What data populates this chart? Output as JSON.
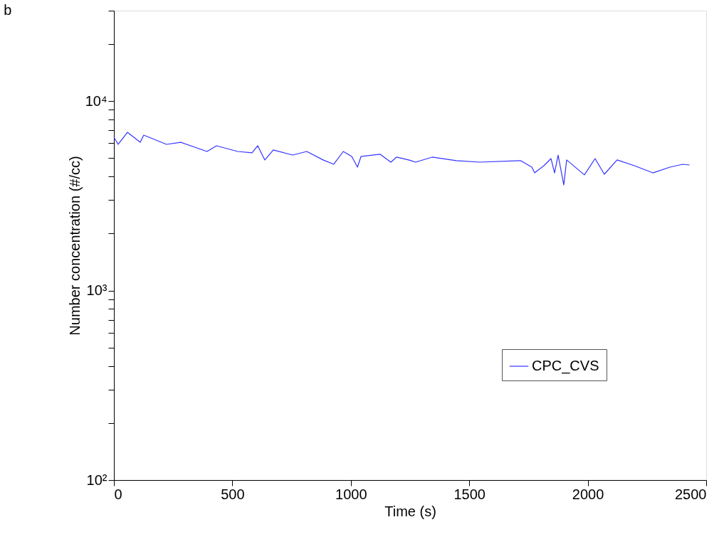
{
  "chart_data": {
    "type": "line",
    "title": "b",
    "xlabel": "Time (s)",
    "ylabel": "Number concentration (#/cc)",
    "xlim": [
      0,
      2500
    ],
    "xticks": [
      0,
      500,
      1000,
      1500,
      2000,
      2500
    ],
    "ylim": [
      100,
      30000
    ],
    "yticks": [
      {
        "value": 100,
        "label": "10²"
      },
      {
        "value": 200,
        "label": null
      },
      {
        "value": 300,
        "label": null
      },
      {
        "value": 400,
        "label": null
      },
      {
        "value": 500,
        "label": null
      },
      {
        "value": 600,
        "label": null
      },
      {
        "value": 700,
        "label": null
      },
      {
        "value": 800,
        "label": null
      },
      {
        "value": 900,
        "label": null
      },
      {
        "value": 1000,
        "label": "10³"
      },
      {
        "value": 2000,
        "label": null
      },
      {
        "value": 3000,
        "label": null
      },
      {
        "value": 4000,
        "label": null
      },
      {
        "value": 5000,
        "label": null
      },
      {
        "value": 6000,
        "label": null
      },
      {
        "value": 7000,
        "label": null
      },
      {
        "value": 8000,
        "label": null
      },
      {
        "value": 9000,
        "label": null
      },
      {
        "value": 10000,
        "label": "10⁴"
      },
      {
        "value": 20000,
        "label": null
      },
      {
        "value": 30000,
        "label": null
      }
    ],
    "log": true,
    "grid": false,
    "legend": "bottom right",
    "marker": "none",
    "line_style": "solid",
    "series": [
      {
        "name": "CPC_CVS",
        "color": "#3333ff",
        "x": [
          0,
          18,
          57,
          111,
          126,
          222,
          282,
          393,
          433,
          523,
          583,
          607,
          637,
          673,
          754,
          814,
          883,
          928,
          968,
          1004,
          1028,
          1043,
          1124,
          1169,
          1193,
          1244,
          1274,
          1343,
          1445,
          1544,
          1716,
          1764,
          1776,
          1815,
          1845,
          1860,
          1875,
          1899,
          1911,
          1986,
          2031,
          2070,
          2124,
          2197,
          2275,
          2347,
          2401,
          2430
        ],
        "values": [
          6440,
          5910,
          6840,
          6060,
          6610,
          5910,
          6060,
          5420,
          5810,
          5420,
          5330,
          5810,
          4890,
          5520,
          5190,
          5420,
          4890,
          4640,
          5420,
          5100,
          4480,
          5100,
          5240,
          4760,
          5060,
          4890,
          4760,
          5060,
          4850,
          4760,
          4850,
          4480,
          4180,
          4560,
          4970,
          4180,
          5190,
          3610,
          4890,
          4080,
          4970,
          4110,
          4890,
          4560,
          4180,
          4480,
          4640,
          4600
        ]
      }
    ]
  }
}
